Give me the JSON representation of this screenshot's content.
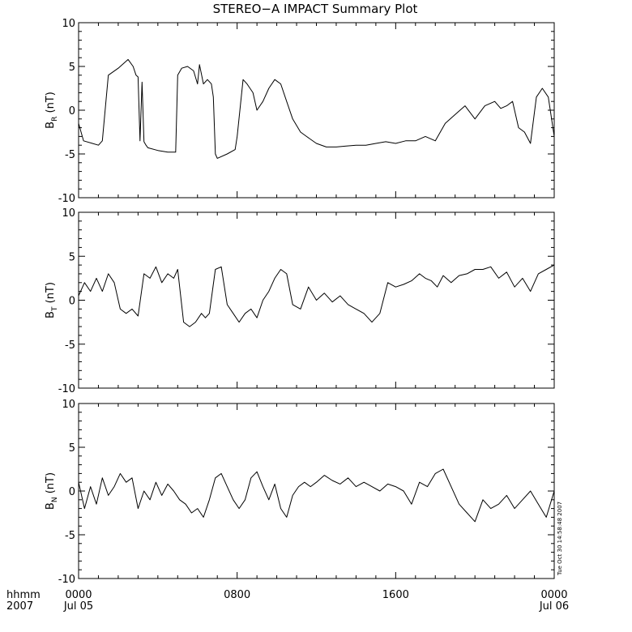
{
  "title": "STEREO−A IMPACT Summary Plot",
  "timestamp": "Tue Oct 30 14:58:48 2007",
  "x_axis": {
    "row1_label": "hhmm",
    "row2_label": "2007",
    "ticks": [
      {
        "hour": 0,
        "time": "0000",
        "date": "Jul 05"
      },
      {
        "hour": 8,
        "time": "0800",
        "date": ""
      },
      {
        "hour": 16,
        "time": "1600",
        "date": ""
      },
      {
        "hour": 24,
        "time": "0000",
        "date": "Jul 06"
      }
    ]
  },
  "chart_data": [
    {
      "type": "line",
      "ylabel": {
        "main": "B",
        "sub": "R",
        "unit": "(nT)"
      },
      "ylim": [
        -10,
        10
      ],
      "xlim": [
        0,
        24
      ],
      "yticks": [
        10,
        5,
        0,
        -5,
        -10
      ],
      "x_unit": "hours",
      "x": [
        0,
        0.25,
        0.7,
        1.0,
        1.2,
        1.5,
        2.0,
        2.5,
        2.75,
        2.9,
        3.0,
        3.1,
        3.2,
        3.3,
        3.4,
        3.5,
        4.0,
        4.5,
        4.9,
        5.0,
        5.2,
        5.5,
        5.8,
        6.0,
        6.1,
        6.3,
        6.5,
        6.7,
        6.8,
        6.9,
        7.0,
        7.5,
        7.9,
        8.0,
        8.3,
        8.5,
        8.8,
        9.0,
        9.3,
        9.6,
        9.9,
        10.2,
        10.5,
        10.8,
        11.2,
        11.5,
        12.0,
        12.5,
        13.0,
        13.5,
        14.0,
        14.5,
        15.0,
        15.5,
        16.0,
        16.5,
        17.0,
        17.5,
        18.0,
        18.5,
        19.0,
        19.5,
        20.0,
        20.5,
        21.0,
        21.3,
        21.6,
        21.9,
        22.2,
        22.5,
        22.8,
        23.1,
        23.4,
        23.7,
        24.0
      ],
      "values": [
        -1.5,
        -3.5,
        -3.8,
        -4.0,
        -3.5,
        4.0,
        4.8,
        5.8,
        5.0,
        4.0,
        3.8,
        -3.5,
        3.2,
        -3.6,
        -4.0,
        -4.3,
        -4.6,
        -4.8,
        -4.8,
        4.0,
        4.8,
        5.0,
        4.5,
        3.0,
        5.2,
        3.0,
        3.5,
        3.0,
        1.5,
        -5.0,
        -5.5,
        -5.0,
        -4.5,
        -3.0,
        3.5,
        3.0,
        2.0,
        0.0,
        1.0,
        2.5,
        3.5,
        3.0,
        1.0,
        -1.0,
        -2.5,
        -3.0,
        -3.8,
        -4.2,
        -4.2,
        -4.1,
        -4.0,
        -4.0,
        -3.8,
        -3.6,
        -3.8,
        -3.5,
        -3.5,
        -3.0,
        -3.5,
        -1.5,
        -0.5,
        0.5,
        -1.0,
        0.5,
        1.0,
        0.2,
        0.5,
        1.0,
        -2.0,
        -2.5,
        -3.8,
        1.5,
        2.5,
        1.5,
        -3.0
      ]
    },
    {
      "type": "line",
      "ylabel": {
        "main": "B",
        "sub": "T",
        "unit": "(nT)"
      },
      "ylim": [
        -10,
        10
      ],
      "xlim": [
        0,
        24
      ],
      "yticks": [
        10,
        5,
        0,
        -5,
        -10
      ],
      "x_unit": "hours",
      "x": [
        0,
        0.3,
        0.6,
        0.9,
        1.2,
        1.5,
        1.8,
        2.1,
        2.4,
        2.7,
        3.0,
        3.3,
        3.6,
        3.9,
        4.2,
        4.5,
        4.8,
        5.0,
        5.3,
        5.6,
        5.9,
        6.2,
        6.4,
        6.6,
        6.9,
        7.2,
        7.5,
        7.8,
        8.1,
        8.4,
        8.7,
        9.0,
        9.3,
        9.6,
        9.9,
        10.2,
        10.5,
        10.8,
        11.2,
        11.6,
        12.0,
        12.4,
        12.8,
        13.2,
        13.6,
        14.0,
        14.4,
        14.8,
        15.2,
        15.6,
        16.0,
        16.4,
        16.8,
        17.2,
        17.5,
        17.8,
        18.1,
        18.4,
        18.8,
        19.2,
        19.6,
        20.0,
        20.4,
        20.8,
        21.2,
        21.6,
        22.0,
        22.4,
        22.8,
        23.2,
        23.6,
        24.0
      ],
      "values": [
        0.5,
        2.0,
        1.0,
        2.5,
        1.0,
        3.0,
        2.0,
        -1.0,
        -1.5,
        -1.0,
        -1.8,
        3.0,
        2.5,
        3.8,
        2.0,
        3.0,
        2.5,
        3.5,
        -2.5,
        -3.0,
        -2.5,
        -1.5,
        -2.0,
        -1.5,
        3.5,
        3.8,
        -0.5,
        -1.5,
        -2.5,
        -1.5,
        -1.0,
        -2.0,
        0.0,
        1.0,
        2.5,
        3.5,
        3.0,
        -0.5,
        -1.0,
        1.5,
        0.0,
        0.8,
        -0.2,
        0.5,
        -0.5,
        -1.0,
        -1.5,
        -2.5,
        -1.5,
        2.0,
        1.5,
        1.8,
        2.2,
        3.0,
        2.5,
        2.2,
        1.5,
        2.8,
        2.0,
        2.8,
        3.0,
        3.5,
        3.5,
        3.8,
        2.5,
        3.2,
        1.5,
        2.5,
        1.0,
        3.0,
        3.5,
        4.0
      ]
    },
    {
      "type": "line",
      "ylabel": {
        "main": "B",
        "sub": "N",
        "unit": "(nT)"
      },
      "ylim": [
        -10,
        10
      ],
      "xlim": [
        0,
        24
      ],
      "yticks": [
        10,
        5,
        0,
        -5,
        -10
      ],
      "x_unit": "hours",
      "x": [
        0,
        0.3,
        0.6,
        0.9,
        1.2,
        1.5,
        1.8,
        2.1,
        2.4,
        2.7,
        3.0,
        3.3,
        3.6,
        3.9,
        4.2,
        4.5,
        4.8,
        5.1,
        5.4,
        5.7,
        6.0,
        6.3,
        6.6,
        6.9,
        7.2,
        7.5,
        7.8,
        8.1,
        8.4,
        8.7,
        9.0,
        9.3,
        9.6,
        9.9,
        10.2,
        10.5,
        10.8,
        11.1,
        11.4,
        11.7,
        12.0,
        12.4,
        12.8,
        13.2,
        13.6,
        14.0,
        14.4,
        14.8,
        15.2,
        15.6,
        16.0,
        16.4,
        16.8,
        17.2,
        17.6,
        18.0,
        18.4,
        18.8,
        19.2,
        19.6,
        20.0,
        20.4,
        20.8,
        21.2,
        21.6,
        22.0,
        22.4,
        22.8,
        23.2,
        23.6,
        24.0
      ],
      "values": [
        1.0,
        -2.0,
        0.5,
        -1.5,
        1.5,
        -0.5,
        0.5,
        2.0,
        1.0,
        1.5,
        -2.0,
        0.0,
        -1.0,
        1.0,
        -0.5,
        0.8,
        0.0,
        -1.0,
        -1.5,
        -2.5,
        -2.0,
        -3.0,
        -1.0,
        1.5,
        2.0,
        0.5,
        -1.0,
        -2.0,
        -1.0,
        1.5,
        2.2,
        0.5,
        -1.0,
        0.8,
        -2.0,
        -3.0,
        -0.5,
        0.5,
        1.0,
        0.5,
        1.0,
        1.8,
        1.2,
        0.8,
        1.5,
        0.5,
        1.0,
        0.5,
        0.0,
        0.8,
        0.5,
        0.0,
        -1.5,
        1.0,
        0.5,
        2.0,
        2.5,
        0.5,
        -1.5,
        -2.5,
        -3.5,
        -1.0,
        -2.0,
        -1.5,
        -0.5,
        -2.0,
        -1.0,
        0.0,
        -1.5,
        -3.0,
        0.0
      ]
    }
  ]
}
